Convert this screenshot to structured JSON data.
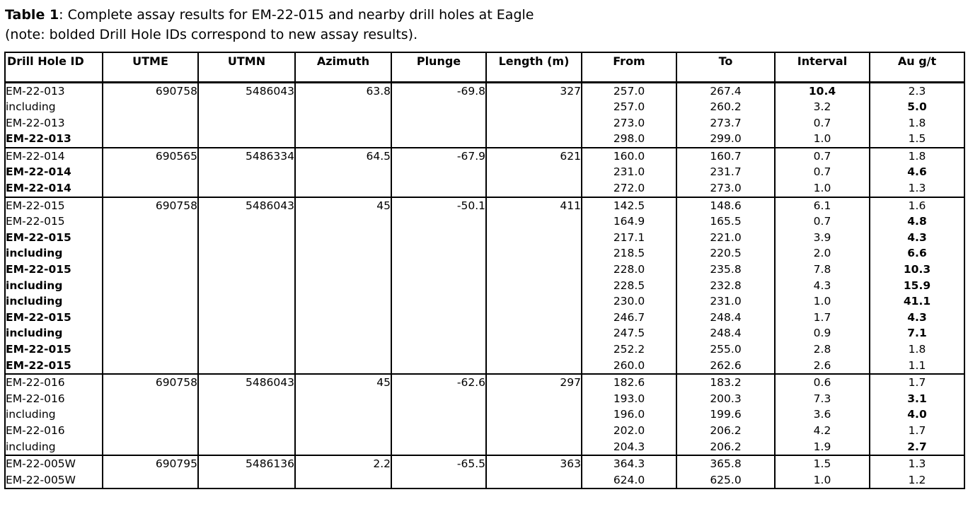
{
  "caption": {
    "label": "Table 1",
    "text": ": Complete assay results for EM-22-015 and nearby drill holes at Eagle",
    "note": "(note: bolded Drill Hole IDs correspond to new assay results)."
  },
  "table": {
    "columns": [
      "Drill Hole ID",
      "UTME",
      "UTMN",
      "Azimuth",
      "Plunge",
      "Length (m)",
      "From",
      "To",
      "Interval",
      "Au g/t"
    ],
    "groups": [
      {
        "hole": {
          "utme": "690758",
          "utmn": "5486043",
          "azimuth": "63.8",
          "plunge": "-69.8",
          "length": "327"
        },
        "rows": [
          {
            "id": "EM-22-013",
            "id_bold": false,
            "from": "257.0",
            "to": "267.4",
            "interval": "10.4",
            "interval_bold": true,
            "au": "2.3",
            "au_bold": false
          },
          {
            "id": "including",
            "id_bold": false,
            "from": "257.0",
            "to": "260.2",
            "interval": "3.2",
            "interval_bold": false,
            "au": "5.0",
            "au_bold": true
          },
          {
            "id": "EM-22-013",
            "id_bold": false,
            "from": "273.0",
            "to": "273.7",
            "interval": "0.7",
            "interval_bold": false,
            "au": "1.8",
            "au_bold": false
          },
          {
            "id": "EM-22-013",
            "id_bold": true,
            "from": "298.0",
            "to": "299.0",
            "interval": "1.0",
            "interval_bold": false,
            "au": "1.5",
            "au_bold": false
          }
        ]
      },
      {
        "hole": {
          "utme": "690565",
          "utmn": "5486334",
          "azimuth": "64.5",
          "plunge": "-67.9",
          "length": "621"
        },
        "rows": [
          {
            "id": "EM-22-014",
            "id_bold": false,
            "from": "160.0",
            "to": "160.7",
            "interval": "0.7",
            "interval_bold": false,
            "au": "1.8",
            "au_bold": false
          },
          {
            "id": "EM-22-014",
            "id_bold": true,
            "from": "231.0",
            "to": "231.7",
            "interval": "0.7",
            "interval_bold": false,
            "au": "4.6",
            "au_bold": true
          },
          {
            "id": "EM-22-014",
            "id_bold": true,
            "from": "272.0",
            "to": "273.0",
            "interval": "1.0",
            "interval_bold": false,
            "au": "1.3",
            "au_bold": false
          }
        ]
      },
      {
        "hole": {
          "utme": "690758",
          "utmn": "5486043",
          "azimuth": "45",
          "plunge": "-50.1",
          "length": "411"
        },
        "rows": [
          {
            "id": "EM-22-015",
            "id_bold": false,
            "from": "142.5",
            "to": "148.6",
            "interval": "6.1",
            "interval_bold": false,
            "au": "1.6",
            "au_bold": false
          },
          {
            "id": "EM-22-015",
            "id_bold": false,
            "from": "164.9",
            "to": "165.5",
            "interval": "0.7",
            "interval_bold": false,
            "au": "4.8",
            "au_bold": true
          },
          {
            "id": "EM-22-015",
            "id_bold": true,
            "from": "217.1",
            "to": "221.0",
            "interval": "3.9",
            "interval_bold": false,
            "au": "4.3",
            "au_bold": true
          },
          {
            "id": "including",
            "id_bold": true,
            "from": "218.5",
            "to": "220.5",
            "interval": "2.0",
            "interval_bold": false,
            "au": "6.6",
            "au_bold": true
          },
          {
            "id": "EM-22-015",
            "id_bold": true,
            "from": "228.0",
            "to": "235.8",
            "interval": "7.8",
            "interval_bold": false,
            "au": "10.3",
            "au_bold": true
          },
          {
            "id": "including",
            "id_bold": true,
            "from": "228.5",
            "to": "232.8",
            "interval": "4.3",
            "interval_bold": false,
            "au": "15.9",
            "au_bold": true
          },
          {
            "id": "including",
            "id_bold": true,
            "from": "230.0",
            "to": "231.0",
            "interval": "1.0",
            "interval_bold": false,
            "au": "41.1",
            "au_bold": true
          },
          {
            "id": "EM-22-015",
            "id_bold": true,
            "from": "246.7",
            "to": "248.4",
            "interval": "1.7",
            "interval_bold": false,
            "au": "4.3",
            "au_bold": true
          },
          {
            "id": "including",
            "id_bold": true,
            "from": "247.5",
            "to": "248.4",
            "interval": "0.9",
            "interval_bold": false,
            "au": "7.1",
            "au_bold": true
          },
          {
            "id": "EM-22-015",
            "id_bold": true,
            "from": "252.2",
            "to": "255.0",
            "interval": "2.8",
            "interval_bold": false,
            "au": "1.8",
            "au_bold": false
          },
          {
            "id": "EM-22-015",
            "id_bold": true,
            "from": "260.0",
            "to": "262.6",
            "interval": "2.6",
            "interval_bold": false,
            "au": "1.1",
            "au_bold": false
          }
        ]
      },
      {
        "hole": {
          "utme": "690758",
          "utmn": "5486043",
          "azimuth": "45",
          "plunge": "-62.6",
          "length": "297"
        },
        "rows": [
          {
            "id": "EM-22-016",
            "id_bold": false,
            "from": "182.6",
            "to": "183.2",
            "interval": "0.6",
            "interval_bold": false,
            "au": "1.7",
            "au_bold": false
          },
          {
            "id": "EM-22-016",
            "id_bold": false,
            "from": "193.0",
            "to": "200.3",
            "interval": "7.3",
            "interval_bold": false,
            "au": "3.1",
            "au_bold": true
          },
          {
            "id": "including",
            "id_bold": false,
            "from": "196.0",
            "to": "199.6",
            "interval": "3.6",
            "interval_bold": false,
            "au": "4.0",
            "au_bold": true
          },
          {
            "id": "EM-22-016",
            "id_bold": false,
            "from": "202.0",
            "to": "206.2",
            "interval": "4.2",
            "interval_bold": false,
            "au": "1.7",
            "au_bold": false
          },
          {
            "id": "including",
            "id_bold": false,
            "from": "204.3",
            "to": "206.2",
            "interval": "1.9",
            "interval_bold": false,
            "au": "2.7",
            "au_bold": true
          }
        ]
      },
      {
        "hole": {
          "utme": "690795",
          "utmn": "5486136",
          "azimuth": "2.2",
          "plunge": "-65.5",
          "length": "363"
        },
        "rows": [
          {
            "id": "EM-22-005W",
            "id_bold": false,
            "from": "364.3",
            "to": "365.8",
            "interval": "1.5",
            "interval_bold": false,
            "au": "1.3",
            "au_bold": false
          },
          {
            "id": "EM-22-005W",
            "id_bold": false,
            "from": "624.0",
            "to": "625.0",
            "interval": "1.0",
            "interval_bold": false,
            "au": "1.2",
            "au_bold": false
          }
        ]
      }
    ]
  }
}
